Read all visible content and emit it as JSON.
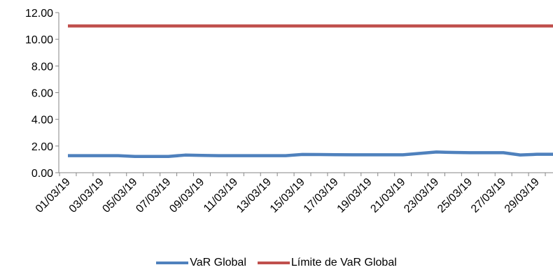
{
  "chart_data": {
    "type": "line",
    "x": [
      "01/03/19",
      "02/03/19",
      "03/03/19",
      "04/03/19",
      "05/03/19",
      "06/03/19",
      "07/03/19",
      "08/03/19",
      "09/03/19",
      "10/03/19",
      "11/03/19",
      "12/03/19",
      "13/03/19",
      "14/03/19",
      "15/03/19",
      "16/03/19",
      "17/03/19",
      "18/03/19",
      "19/03/19",
      "20/03/19",
      "21/03/19",
      "22/03/19",
      "23/03/19",
      "24/03/19",
      "25/03/19",
      "26/03/19",
      "27/03/19",
      "28/03/19",
      "29/03/19",
      "30/03/19"
    ],
    "x_tick_labels": [
      "01/03/19",
      "03/03/19",
      "05/03/19",
      "07/03/19",
      "09/03/19",
      "11/03/19",
      "13/03/19",
      "15/03/19",
      "17/03/19",
      "19/03/19",
      "21/03/19",
      "23/03/19",
      "25/03/19",
      "27/03/19",
      "29/03/19"
    ],
    "series": [
      {
        "name": "VaR Global",
        "color": "#4f81bd",
        "values": [
          1.28,
          1.28,
          1.28,
          1.28,
          1.22,
          1.22,
          1.22,
          1.32,
          1.3,
          1.28,
          1.28,
          1.28,
          1.28,
          1.28,
          1.37,
          1.36,
          1.35,
          1.34,
          1.34,
          1.34,
          1.34,
          1.45,
          1.55,
          1.52,
          1.5,
          1.5,
          1.5,
          1.33,
          1.38,
          1.38
        ]
      },
      {
        "name": "Límite de VaR Global",
        "color": "#c0504d",
        "values": [
          11.0,
          11.0,
          11.0,
          11.0,
          11.0,
          11.0,
          11.0,
          11.0,
          11.0,
          11.0,
          11.0,
          11.0,
          11.0,
          11.0,
          11.0,
          11.0,
          11.0,
          11.0,
          11.0,
          11.0,
          11.0,
          11.0,
          11.0,
          11.0,
          11.0,
          11.0,
          11.0,
          11.0,
          11.0,
          11.0
        ]
      }
    ],
    "y_ticks": [
      "0.00",
      "2.00",
      "4.00",
      "6.00",
      "8.00",
      "10.00",
      "12.00"
    ],
    "ylim": [
      0,
      12
    ],
    "title": "",
    "xlabel": "",
    "ylabel": "",
    "grid": false,
    "legend_position": "bottom"
  }
}
